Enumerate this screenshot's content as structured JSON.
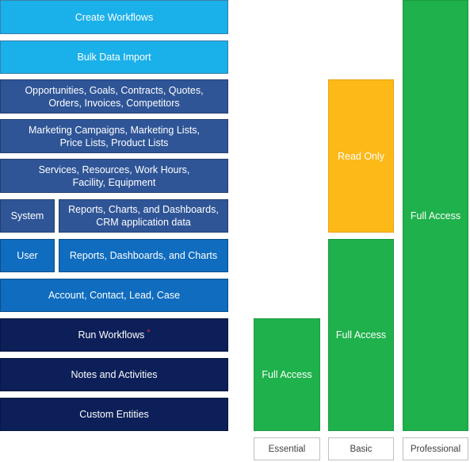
{
  "features": {
    "create_workflows": "Create Workflows",
    "bulk_data_import": "Bulk Data Import",
    "opportunities_line1": "Opportunities, Goals, Contracts, Quotes,",
    "opportunities_line2": "Orders, Invoices, Competitors",
    "marketing_line1": "Marketing Campaigns, Marketing Lists,",
    "marketing_line2": "Price Lists, Product Lists",
    "services_line1": "Services, Resources, Work Hours,",
    "services_line2": "Facility, Equipment",
    "system_label": "System",
    "system_reports_line1": "Reports, Charts, and Dashboards,",
    "system_reports_line2": "CRM application data",
    "user_label": "User",
    "user_reports": "Reports, Dashboards, and Charts",
    "account_contact": "Account, Contact, Lead, Case",
    "run_workflows": "Run Workflows",
    "run_workflows_mark": "*",
    "notes_activities": "Notes and Activities",
    "custom_entities": "Custom Entities"
  },
  "access": {
    "essential": "Full Access",
    "basic_read": "Read Only",
    "basic_full": "Full Access",
    "professional": "Full Access"
  },
  "tiers": {
    "essential": "Essential",
    "basic": "Basic",
    "professional": "Professional"
  },
  "colors": {
    "cyan": "#1ab0ea",
    "mid_blue": "#2f5597",
    "blue": "#0f6cbf",
    "navy": "#0c1f58",
    "full_access_green": "#1fb14b",
    "read_only_gold": "#fdb918"
  }
}
